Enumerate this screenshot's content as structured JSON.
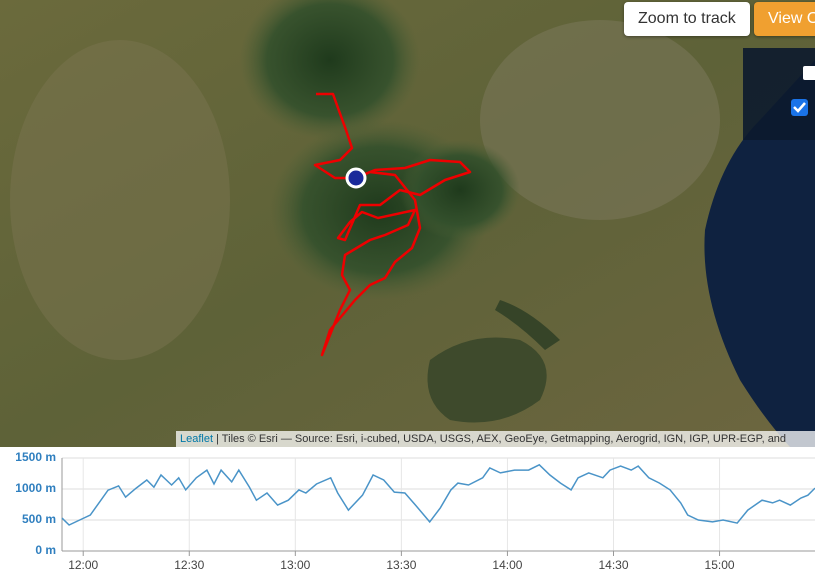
{
  "buttons": [
    "Zoom to track",
    "View O"
  ],
  "attribution": {
    "link": "Leaflet",
    "text": "| Tiles © Esri — Source: Esri, i-cubed, USDA, USGS, AEX, GeoEye, Getmapping, Aerogrid, IGN, IGP, UPR-EGP, and"
  },
  "chart_data": {
    "type": "line",
    "color": "#4a94c8",
    "x": [
      "11:54",
      "11:56",
      "11:59",
      "12:02",
      "12:05",
      "12:07",
      "12:10",
      "12:12",
      "12:15",
      "12:18",
      "12:20",
      "12:22",
      "12:25",
      "12:27",
      "12:29",
      "12:32",
      "12:35",
      "12:37",
      "12:39",
      "12:42",
      "12:44",
      "12:47",
      "12:49",
      "12:52",
      "12:55",
      "12:58",
      "13:01",
      "13:03",
      "13:06",
      "13:10",
      "13:12",
      "13:15",
      "13:19",
      "13:22",
      "13:25",
      "13:28",
      "13:31",
      "13:34",
      "13:38",
      "13:41",
      "13:44",
      "13:46",
      "13:49",
      "13:53",
      "13:55",
      "13:58",
      "14:02",
      "14:06",
      "14:09",
      "14:12",
      "14:15",
      "14:18",
      "14:20",
      "14:23",
      "14:27",
      "14:29",
      "14:32",
      "14:35",
      "14:37",
      "14:40",
      "14:43",
      "14:46",
      "14:49",
      "14:51",
      "14:54",
      "14:58",
      "15:01",
      "15:05",
      "15:08",
      "15:12",
      "15:15",
      "15:17",
      "15:20",
      "15:23",
      "15:25",
      "15:27"
    ],
    "values": [
      530,
      420,
      500,
      580,
      820,
      980,
      1050,
      870,
      1015,
      1145,
      1030,
      1225,
      1065,
      1180,
      985,
      1180,
      1305,
      1080,
      1305,
      1115,
      1305,
      1030,
      820,
      935,
      740,
      820,
      985,
      935,
      1080,
      1180,
      935,
      660,
      900,
      1225,
      1145,
      950,
      935,
      740,
      470,
      695,
      985,
      1095,
      1065,
      1180,
      1340,
      1260,
      1305,
      1305,
      1390,
      1225,
      1095,
      985,
      1180,
      1260,
      1180,
      1305,
      1370,
      1305,
      1370,
      1180,
      1095,
      985,
      775,
      580,
      500,
      470,
      500,
      450,
      660,
      820,
      775,
      820,
      740,
      855,
      900,
      1015
    ],
    "xlim": [
      "11:54",
      "15:27"
    ],
    "xticks": [
      "12:00",
      "12:30",
      "13:00",
      "13:30",
      "14:00",
      "14:30",
      "15:00"
    ],
    "ylim": [
      0,
      1500
    ],
    "yticks": [
      {
        "value": 0,
        "label": "0 m"
      },
      {
        "value": 500,
        "label": "500 m"
      },
      {
        "value": 1000,
        "label": "1000 m"
      },
      {
        "value": 1500,
        "label": "1500 m"
      }
    ],
    "grid": true
  }
}
